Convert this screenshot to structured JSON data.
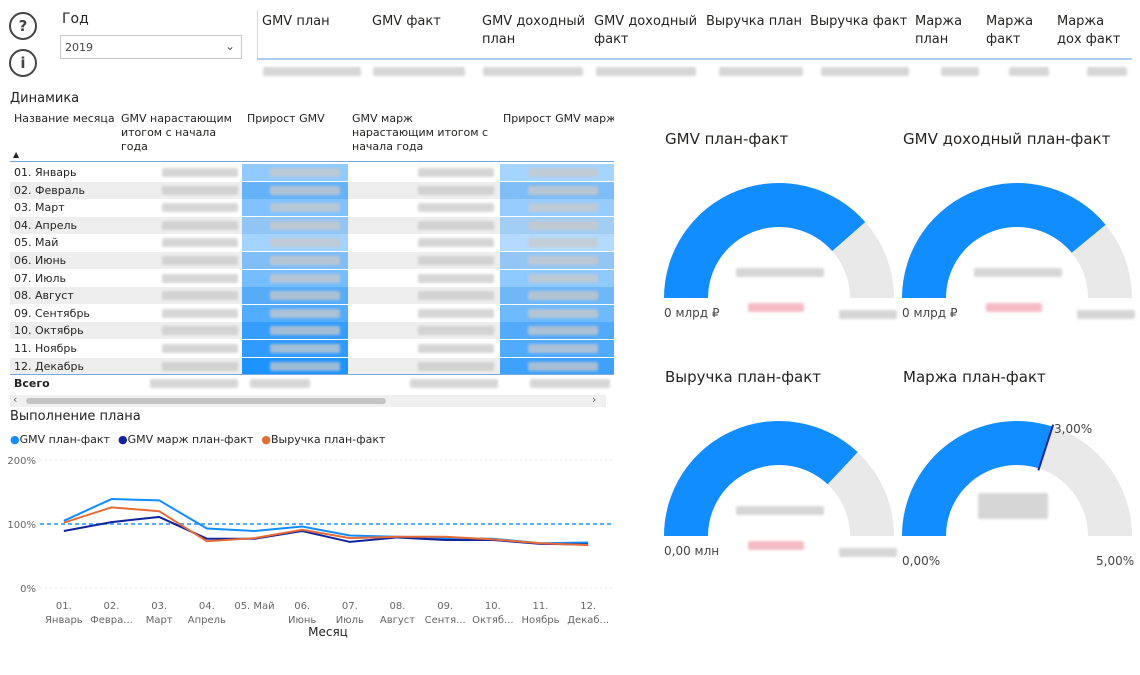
{
  "header": {
    "help_icon": "question-circle-icon",
    "info_icon": "info-circle-icon",
    "year_label": "Год",
    "year_value": "2019",
    "summary_columns": [
      "GMV план",
      "GMV факт",
      "GMV доходный план",
      "GMV доходный факт",
      "Выручка план",
      "Выручка факт",
      "Маржа план",
      "Маржа факт",
      "Маржа дох факт"
    ]
  },
  "matrix": {
    "title": "Динамика",
    "columns": [
      "Название месяца",
      "GMV нарастающим итогом с начала года",
      "Прирост GMV",
      "GMV марж нарастающим итогом с начала года",
      "Прирост GMV марж"
    ],
    "rows": [
      "01. Январь",
      "02. Февраль",
      "03. Март",
      "04. Апрель",
      "05. Май",
      "06. Июнь",
      "07. Июль",
      "08. Август",
      "09. Сентябрь",
      "10. Октябрь",
      "11. Ноябрь",
      "12. Декабрь"
    ],
    "heat_levels": [
      0.35,
      0.55,
      0.45,
      0.3,
      0.25,
      0.4,
      0.5,
      0.65,
      0.7,
      0.85,
      0.9,
      1.0
    ],
    "total_label": "Всего",
    "scroll_left": "‹",
    "scroll_right": "›"
  },
  "plan_chart": {
    "title": "Выполнение плана",
    "legend": [
      {
        "name": "GMV план-факт",
        "color": "#118dff"
      },
      {
        "name": "GMV марж план-факт",
        "color": "#12239e"
      },
      {
        "name": "Выручка план-факт",
        "color": "#e66c37"
      }
    ],
    "xlabel": "Месяц",
    "x_ticks": [
      [
        "01.",
        "Январь"
      ],
      [
        "02.",
        "Февра..."
      ],
      [
        "03.",
        "Март"
      ],
      [
        "04.",
        "Апрель"
      ],
      [
        "05. Май",
        ""
      ],
      [
        "06.",
        "Июнь"
      ],
      [
        "07.",
        "Июль"
      ],
      [
        "08.",
        "Август"
      ],
      [
        "09.",
        "Сентя..."
      ],
      [
        "10.",
        "Октяб..."
      ],
      [
        "11.",
        "Ноябрь"
      ],
      [
        "12.",
        "Декаб..."
      ]
    ],
    "y_ticks": [
      "200%",
      "100%",
      "0%"
    ]
  },
  "chart_data": {
    "type": "line",
    "title": "Выполнение плана",
    "categories": [
      "01. Январь",
      "02. Февраль",
      "03. Март",
      "04. Апрель",
      "05. Май",
      "06. Июнь",
      "07. Июль",
      "08. Август",
      "09. Сентябрь",
      "10. Октябрь",
      "11. Ноябрь",
      "12. Декабрь"
    ],
    "series": [
      {
        "name": "GMV план-факт",
        "values": [
          105,
          139,
          137,
          93,
          89,
          96,
          82,
          80,
          78,
          77,
          70,
          71
        ]
      },
      {
        "name": "GMV марж план-факт",
        "values": [
          89,
          103,
          111,
          77,
          77,
          89,
          72,
          79,
          75,
          75,
          69,
          68
        ]
      },
      {
        "name": "Выручка план-факт",
        "values": [
          102,
          126,
          120,
          73,
          78,
          91,
          78,
          80,
          80,
          76,
          70,
          67
        ]
      }
    ],
    "reference_line": 100,
    "xlabel": "Месяц",
    "ylabel": "",
    "ylim": [
      0,
      200
    ],
    "y_ticks": [
      0,
      100,
      200
    ],
    "grid": true,
    "legend_position": "top-left"
  },
  "gauges": [
    {
      "title": "GMV план-факт",
      "min_label": "0 млрд ₽",
      "fraction": 0.77,
      "color": "#118dff"
    },
    {
      "title": "GMV доходный план-факт",
      "min_label": "0 млрд ₽",
      "fraction": 0.78,
      "color": "#118dff"
    },
    {
      "title": "Выручка план-факт",
      "min_label": "0,00 млн",
      "fraction": 0.74,
      "color": "#118dff"
    },
    {
      "title": "Маржа план-факт",
      "min_label": "0,00%",
      "max_label": "5,00%",
      "target_label": "3,00%",
      "fraction": 0.6,
      "target_fraction": 0.6,
      "color": "#118dff"
    }
  ]
}
